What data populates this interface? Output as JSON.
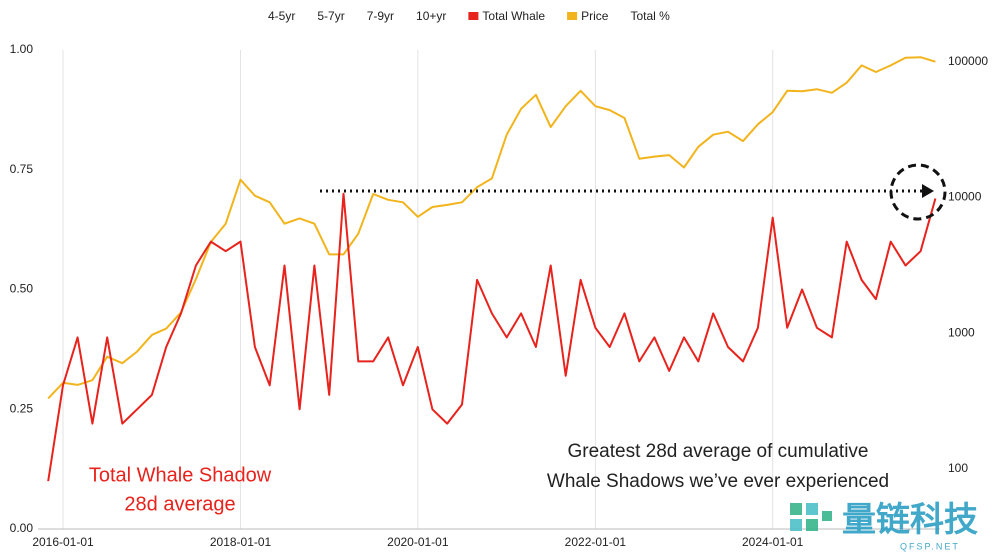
{
  "chart_data": {
    "type": "line",
    "legend_before": [
      "4-5yr",
      "5-7yr",
      "7-9yr",
      "10+yr"
    ],
    "legend_after": [
      "Total %"
    ],
    "x": [
      "2015-11-01",
      "2016-01-01",
      "2016-03-01",
      "2016-05-01",
      "2016-07-01",
      "2016-09-01",
      "2016-11-01",
      "2017-01-01",
      "2017-03-01",
      "2017-05-01",
      "2017-07-01",
      "2017-09-01",
      "2017-11-01",
      "2018-01-01",
      "2018-03-01",
      "2018-05-01",
      "2018-07-01",
      "2018-09-01",
      "2018-11-01",
      "2019-01-01",
      "2019-03-01",
      "2019-05-01",
      "2019-07-01",
      "2019-09-01",
      "2019-11-01",
      "2020-01-01",
      "2020-03-01",
      "2020-05-01",
      "2020-07-01",
      "2020-09-01",
      "2020-11-01",
      "2021-01-01",
      "2021-03-01",
      "2021-05-01",
      "2021-07-01",
      "2021-09-01",
      "2021-11-01",
      "2022-01-01",
      "2022-03-01",
      "2022-05-01",
      "2022-07-01",
      "2022-09-01",
      "2022-11-01",
      "2023-01-01",
      "2023-03-01",
      "2023-05-01",
      "2023-07-01",
      "2023-09-01",
      "2023-11-01",
      "2024-01-01",
      "2024-03-01",
      "2024-05-01",
      "2024-07-01",
      "2024-09-01",
      "2024-11-01",
      "2025-01-01",
      "2025-03-01",
      "2025-05-01",
      "2025-07-01",
      "2025-09-01",
      "2025-11-01"
    ],
    "series": [
      {
        "name": "Total Whale",
        "color": "#e8221c",
        "axis": "y",
        "values": [
          0.1,
          0.3,
          0.4,
          0.22,
          0.4,
          0.22,
          0.25,
          0.28,
          0.38,
          0.45,
          0.55,
          0.6,
          0.58,
          0.6,
          0.38,
          0.3,
          0.55,
          0.25,
          0.55,
          0.28,
          0.7,
          0.35,
          0.35,
          0.4,
          0.3,
          0.38,
          0.25,
          0.22,
          0.26,
          0.52,
          0.45,
          0.4,
          0.45,
          0.38,
          0.55,
          0.32,
          0.52,
          0.42,
          0.38,
          0.45,
          0.35,
          0.4,
          0.33,
          0.4,
          0.35,
          0.45,
          0.38,
          0.35,
          0.42,
          0.65,
          0.42,
          0.5,
          0.42,
          0.4,
          0.6,
          0.52,
          0.48,
          0.6,
          0.55,
          0.58,
          0.69
        ]
      },
      {
        "name": "Price",
        "color": "#f2b41c",
        "axis": "y2",
        "values": [
          330,
          430,
          415,
          450,
          670,
          600,
          730,
          970,
          1080,
          1420,
          2500,
          4700,
          6400,
          13500,
          10300,
          9200,
          6400,
          7000,
          6400,
          3800,
          3800,
          5400,
          10600,
          9600,
          9200,
          7200,
          8500,
          8800,
          9200,
          11900,
          13800,
          29000,
          45000,
          57000,
          33000,
          47000,
          61000,
          47000,
          44000,
          38500,
          19300,
          20000,
          20500,
          16600,
          23600,
          29000,
          30500,
          26000,
          34600,
          42500,
          61000,
          60600,
          62700,
          59000,
          70000,
          94000,
          84000,
          94000,
          107000,
          108000,
          100000
        ]
      }
    ],
    "xlim": [
      "2015-09-20",
      "2025-11-20"
    ],
    "xticks": [
      "2016-01-01",
      "2018-01-01",
      "2020-01-01",
      "2022-01-01",
      "2024-01-01"
    ],
    "ylim": [
      0,
      1
    ],
    "yticks": [
      {
        "value": 0,
        "label": "0.00"
      },
      {
        "value": 0.25,
        "label": "0.25"
      },
      {
        "value": 0.5,
        "label": "0.50"
      },
      {
        "value": 0.75,
        "label": "0.75"
      },
      {
        "value": 1,
        "label": "1.00"
      }
    ],
    "y2lim": [
      36,
      122000
    ],
    "y2ticks": [
      100,
      1000,
      10000,
      100000
    ],
    "y2_log": true,
    "grid": "x",
    "annotations": [
      {
        "lines": [
          "Total Whale Shadow",
          "28d average"
        ]
      },
      {
        "lines": [
          "Greatest 28d average of cumulative",
          "Whale Shadows we’ve ever experienced"
        ]
      }
    ],
    "watermark": {
      "text": "量链科技",
      "url": "QFSP.NET"
    }
  }
}
